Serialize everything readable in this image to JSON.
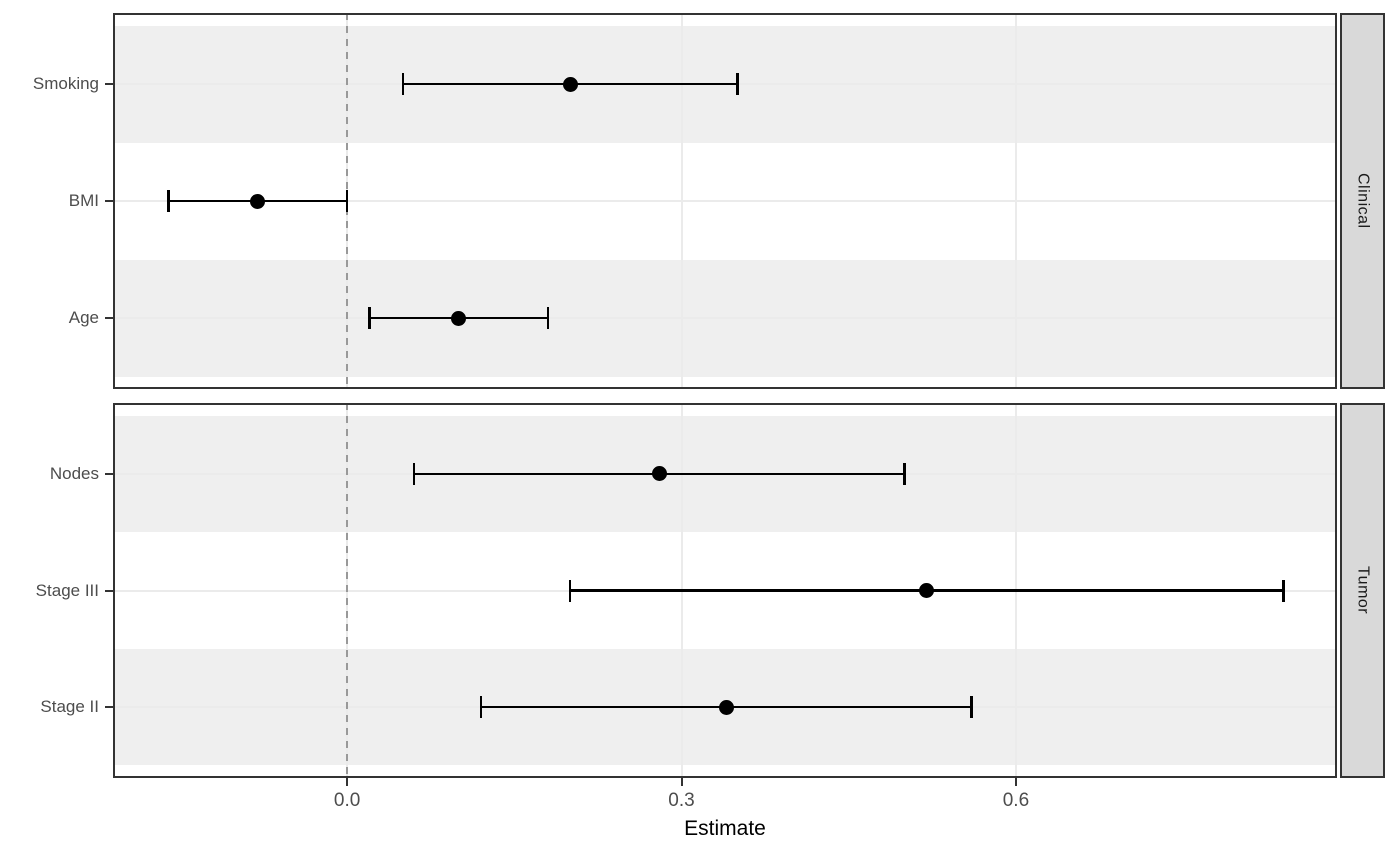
{
  "chart_data": {
    "type": "pointrange",
    "title": "",
    "xlabel": "Estimate",
    "xlim": [
      -0.21,
      0.888
    ],
    "x_ticks": [
      {
        "value": 0.0,
        "label": "0.0"
      },
      {
        "value": 0.3,
        "label": "0.3"
      },
      {
        "value": 0.6,
        "label": "0.6"
      }
    ],
    "reference_line_x": 0.0,
    "grid": "major-only",
    "legend": "none",
    "facets": [
      {
        "label": "Clinical",
        "rows": [
          {
            "label": "Smoking",
            "estimate": 0.2,
            "ci_low": 0.05,
            "ci_high": 0.35
          },
          {
            "label": "BMI",
            "estimate": -0.08,
            "ci_low": -0.16,
            "ci_high": 0.0
          },
          {
            "label": "Age",
            "estimate": 0.1,
            "ci_low": 0.02,
            "ci_high": 0.18
          }
        ]
      },
      {
        "label": "Tumor",
        "rows": [
          {
            "label": "Nodes",
            "estimate": 0.28,
            "ci_low": 0.06,
            "ci_high": 0.5
          },
          {
            "label": "Stage III",
            "estimate": 0.52,
            "ci_low": 0.2,
            "ci_high": 0.84
          },
          {
            "label": "Stage II",
            "estimate": 0.34,
            "ci_low": 0.12,
            "ci_high": 0.56
          }
        ]
      }
    ]
  },
  "colors": {
    "stripe_fill": "#efefef",
    "panel_background": "#ffffff",
    "panel_border": "#333333",
    "strip_fill": "#d9d9d9",
    "strip_text": "#1a1a1a",
    "gridline": "#ebebeb",
    "reference_line": "#999999",
    "point": "#000000",
    "error_bar": "#000000",
    "axis_text": "#4d4d4d",
    "axis_title": "#000000",
    "tick_mark": "#333333"
  }
}
